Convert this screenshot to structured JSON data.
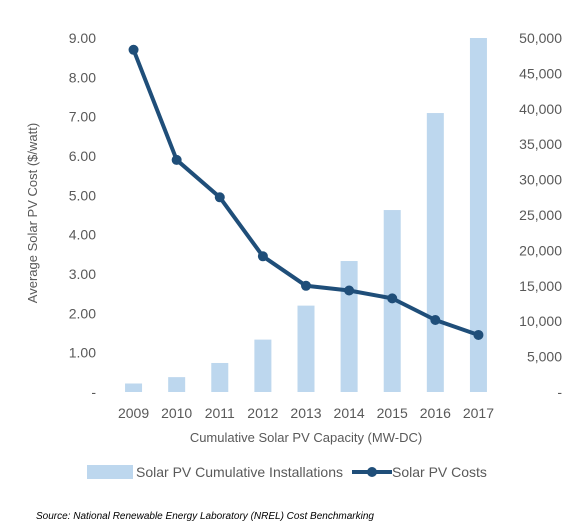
{
  "chart_data": {
    "type": "bar+line",
    "categories": [
      "2009",
      "2010",
      "2011",
      "2012",
      "2013",
      "2014",
      "2015",
      "2016",
      "2017"
    ],
    "series": [
      {
        "name": "Solar PV Cumulative Installations",
        "type": "bar",
        "axis": "right",
        "color": "#BDD7EE",
        "values": [
          1200,
          2100,
          4100,
          7400,
          12200,
          18500,
          25700,
          39400,
          50000
        ]
      },
      {
        "name": "Solar PV Costs",
        "type": "line",
        "axis": "left",
        "color": "#1F4E79",
        "values": [
          8.7,
          5.9,
          4.95,
          3.45,
          2.7,
          2.58,
          2.38,
          1.83,
          1.45
        ]
      }
    ],
    "y_left": {
      "label": "Average Solar PV Cost ($/watt)",
      "ylim": [
        0,
        9
      ],
      "ticks": [
        "-",
        "1.00",
        "2.00",
        "3.00",
        "4.00",
        "5.00",
        "6.00",
        "7.00",
        "8.00",
        "9.00"
      ]
    },
    "y_right": {
      "ylim": [
        0,
        50000
      ],
      "ticks": [
        "-",
        "5,000",
        "10,000",
        "15,000",
        "20,000",
        "25,000",
        "30,000",
        "35,000",
        "40,000",
        "45,000",
        "50,000"
      ]
    },
    "xlabel": "Cumulative Solar PV Capacity (MW-DC)",
    "legend_position": "bottom",
    "grid": false
  },
  "source_note": "Source: National Renewable Energy Laboratory (NREL) Cost Benchmarking"
}
